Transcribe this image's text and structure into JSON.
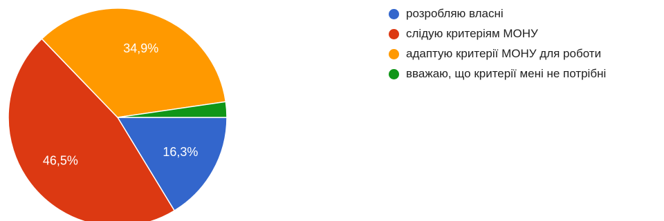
{
  "chart_data": {
    "type": "pie",
    "categories": [
      "розробляю власні",
      "слідую критеріям МОНУ",
      "адаптую критерії МОНУ для роботи",
      "вважаю, що критерії мені не потрібні"
    ],
    "values": [
      16.3,
      46.5,
      34.9,
      2.3
    ],
    "value_labels": [
      "16,3%",
      "46,5%",
      "34,9%",
      ""
    ],
    "colors": [
      "#3366cc",
      "#dc3912",
      "#ff9900",
      "#109618"
    ],
    "legend_position": "right"
  }
}
